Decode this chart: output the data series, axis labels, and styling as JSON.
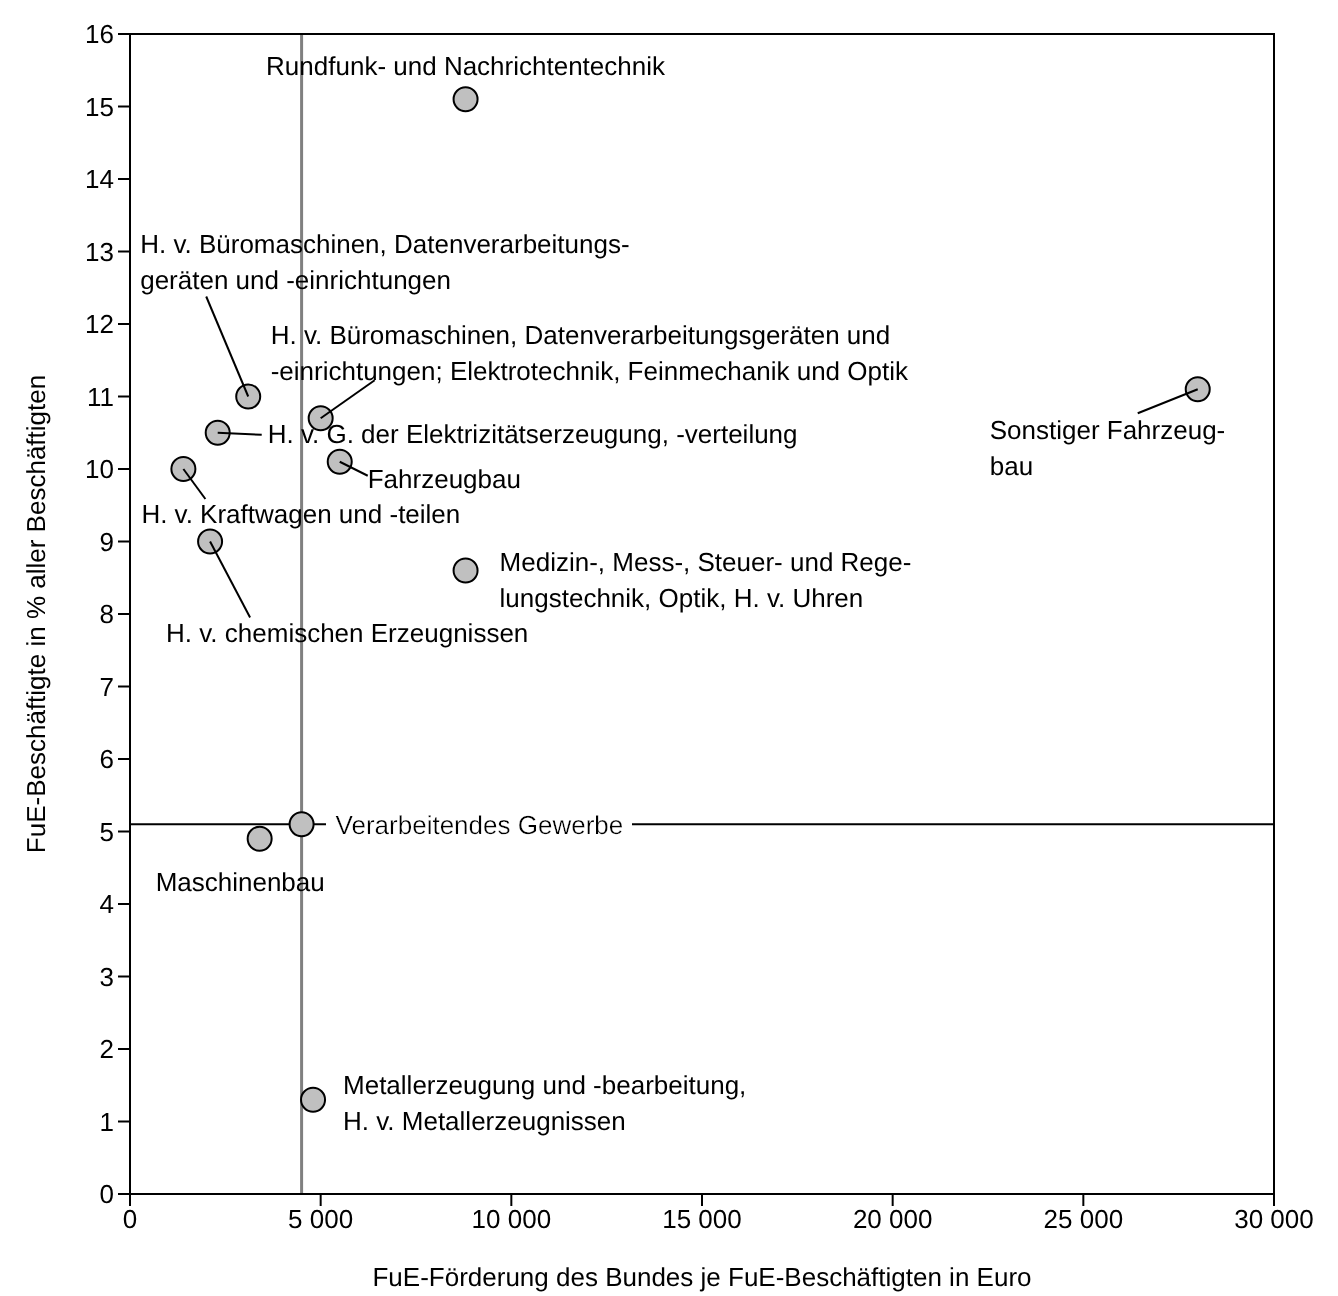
{
  "chart_data": {
    "type": "scatter",
    "xlabel": "FuE-Förderung des Bundes je FuE-Beschäftigten in Euro",
    "ylabel": "FuE-Beschäftigte in % aller Beschäftigten",
    "x": [
      8800,
      3100,
      5000,
      2300,
      5500,
      1400,
      2100,
      8800,
      28000,
      4500,
      3400,
      4800
    ],
    "values": [
      15.1,
      11.0,
      10.7,
      10.5,
      10.1,
      10.0,
      9.0,
      8.6,
      11.1,
      5.1,
      4.9,
      1.3
    ],
    "color": "#c0c0c0",
    "marker": "circle",
    "xlim": [
      0,
      30000
    ],
    "xticks": [
      0,
      {
        "value": 5000,
        "label": "5 000"
      },
      {
        "value": 10000,
        "label": "10 000"
      },
      {
        "value": 15000,
        "label": "15 000"
      },
      {
        "value": 20000,
        "label": "20 000"
      },
      {
        "value": 25000,
        "label": "25 000"
      },
      {
        "value": 30000,
        "label": "30 000"
      }
    ],
    "ylim": [
      0,
      16
    ],
    "yticks": [
      0,
      1,
      2,
      3,
      4,
      5,
      6,
      7,
      8,
      9,
      10,
      11,
      12,
      13,
      14,
      15,
      16
    ],
    "ref_lines": [
      {
        "axis": "x",
        "value": 4500,
        "color": "#808080"
      },
      {
        "axis": "y",
        "value": 5.1,
        "color": "#000000"
      }
    ],
    "annotations": [
      {
        "text": "Rundfunk- und Nachrichtentechnik",
        "x": 8800,
        "y": 15.1
      },
      {
        "text": "H. v. Büromaschinen, Datenverarbeitungs-\ngeräten und -einrichtungen",
        "x": 3100,
        "y": 11.0
      },
      {
        "text": "H. v. Büromaschinen, Datenverarbeitungsgeräten und\n-einrichtungen; Elektrotechnik, Feinmechanik und Optik",
        "x": 5000,
        "y": 10.7
      },
      {
        "text": "H. v. G. der Elektrizitätserzeugung, -verteilung",
        "x": 2300,
        "y": 10.5
      },
      {
        "text": "Fahrzeugbau",
        "x": 5500,
        "y": 10.1
      },
      {
        "text": "H. v. Kraftwagen und -teilen",
        "x": 1400,
        "y": 10.0
      },
      {
        "text": "H. v. chemischen Erzeugnissen",
        "x": 2100,
        "y": 9.0
      },
      {
        "text": "Medizin-, Mess-, Steuer- und Rege-\nlungstechnik, Optik, H. v. Uhren",
        "x": 8800,
        "y": 8.6
      },
      {
        "text": "Sonstiger Fahrzeug-\nbau",
        "x": 28000,
        "y": 11.1
      },
      {
        "text": "Verarbeitendes Gewerbe",
        "x": 4500,
        "y": 5.1
      },
      {
        "text": "Maschinenbau",
        "x": 3400,
        "y": 4.9
      },
      {
        "text": "Metallerzeugung und -bearbeitung,\nH. v. Metallerzeugnissen",
        "x": 4800,
        "y": 1.3
      }
    ]
  }
}
